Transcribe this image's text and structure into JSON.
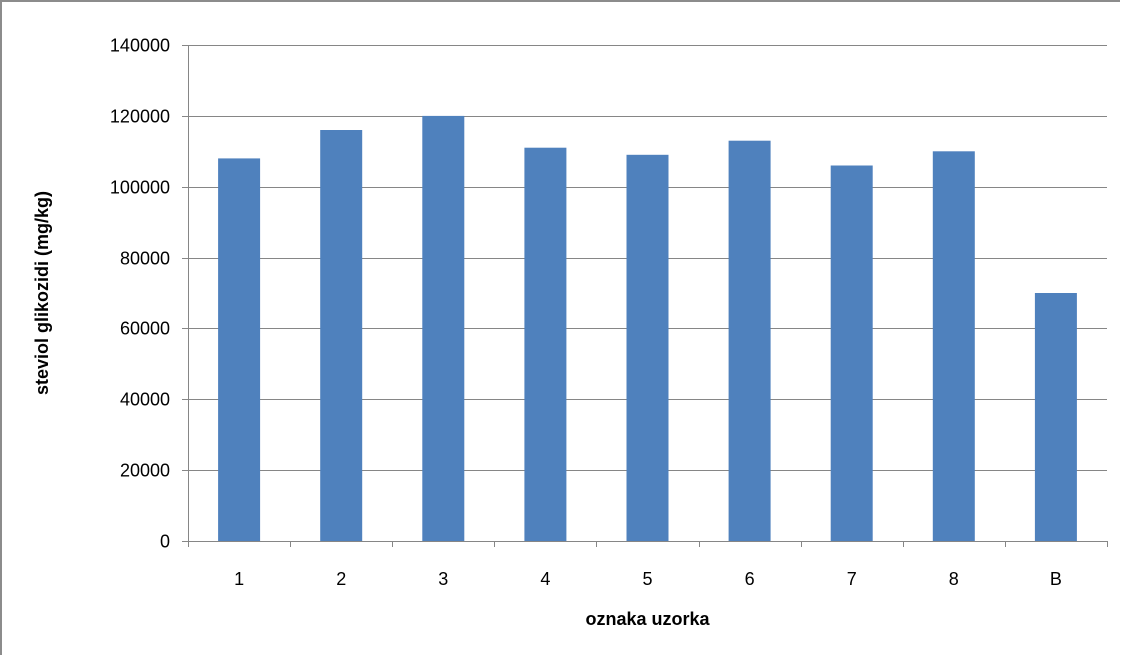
{
  "chart_data": {
    "type": "bar",
    "title": "",
    "xlabel": "oznaka uzorka",
    "ylabel": "steviol glikozidi (mg/kg)",
    "categories": [
      "1",
      "2",
      "3",
      "4",
      "5",
      "6",
      "7",
      "8",
      "B"
    ],
    "values": [
      108000,
      116000,
      120000,
      111000,
      109000,
      113000,
      106000,
      110000,
      70000
    ],
    "ylim": [
      0,
      140000
    ],
    "yticks": [
      0,
      20000,
      40000,
      60000,
      80000,
      100000,
      120000,
      140000
    ],
    "grid": true,
    "legend": "none",
    "bar_color": "#4f81bd",
    "grid_color": "#868686"
  }
}
